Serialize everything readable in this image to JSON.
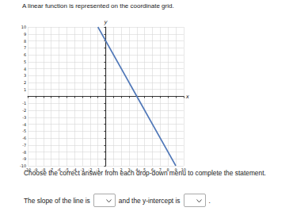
{
  "prompt": "A linear function is represented on the coordinate grid.",
  "chart_data": {
    "type": "line",
    "x": [
      -1,
      9
    ],
    "values": [
      10,
      -10
    ],
    "color": "#4f77b8",
    "xlabel": "x",
    "ylabel": "y",
    "xlim": [
      -10,
      10
    ],
    "ylim": [
      -10,
      10
    ],
    "xticks": [
      -10,
      -9,
      -8,
      -7,
      -6,
      -5,
      -4,
      -3,
      -2,
      -1,
      1,
      2,
      3,
      4,
      5,
      6,
      7,
      8,
      9,
      10
    ],
    "yticks": [
      -10,
      -9,
      -8,
      -7,
      -6,
      -5,
      -4,
      -3,
      -2,
      -1,
      1,
      2,
      3,
      4,
      5,
      6,
      7,
      8,
      9,
      10
    ],
    "grid": true
  },
  "instruction": "Choose the correct answer from each drop-down menu to complete the statement.",
  "statement": {
    "part1": "The slope of the line is",
    "part2": "and the y-intercept is",
    "end": "."
  }
}
